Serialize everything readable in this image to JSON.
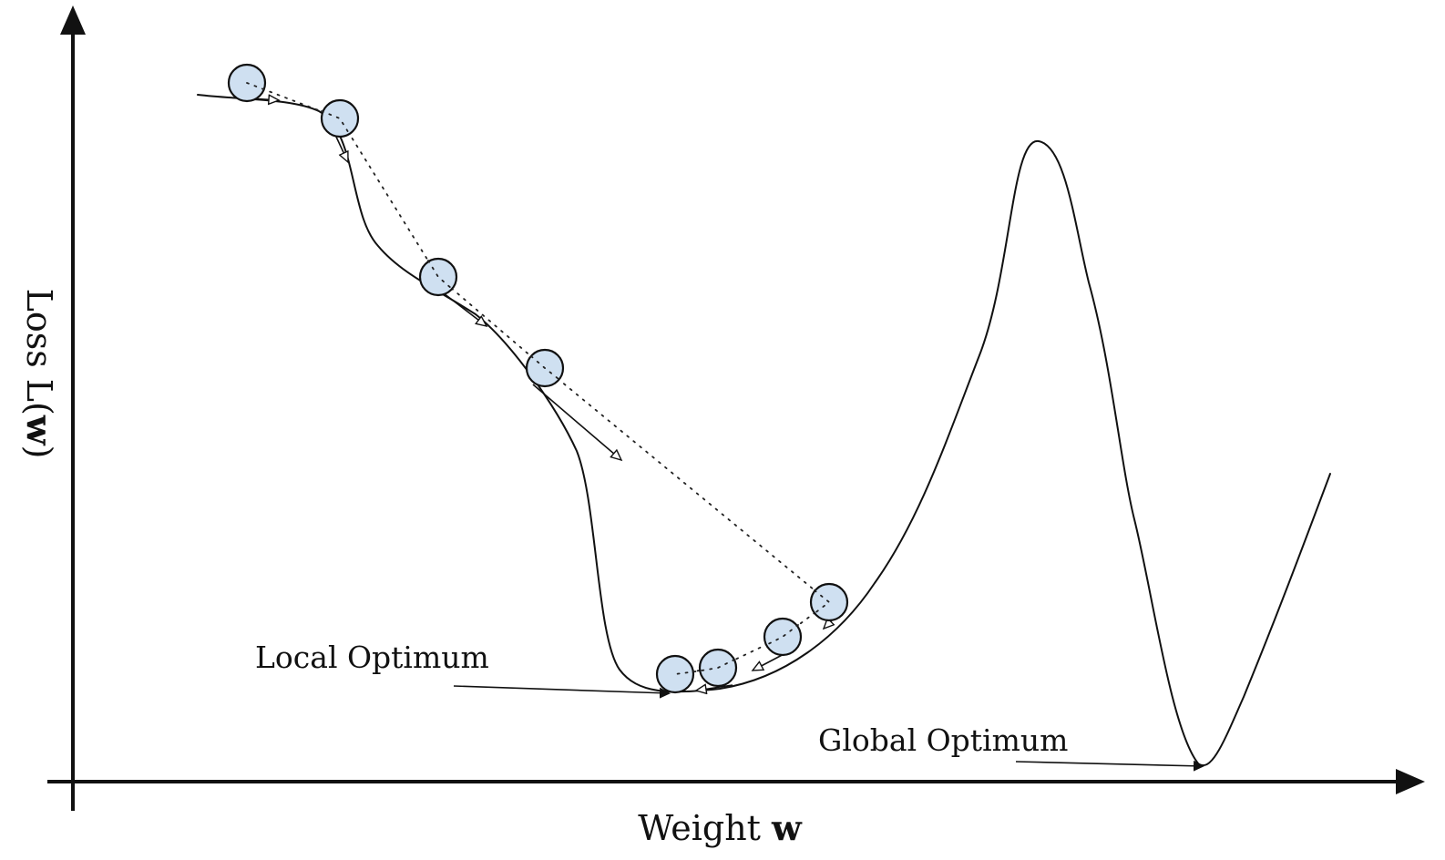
{
  "figure": {
    "y_axis_label_main": "Loss L(",
    "y_axis_label_var": "w",
    "y_axis_label_close": ")",
    "x_axis_label_main": "Weight ",
    "x_axis_label_var": "w",
    "local_optimum_label": "Local Optimum",
    "global_optimum_label": "Global Optimum",
    "ball_color": "#cfe0f1",
    "line_color": "#111111",
    "ball_count": 8
  }
}
